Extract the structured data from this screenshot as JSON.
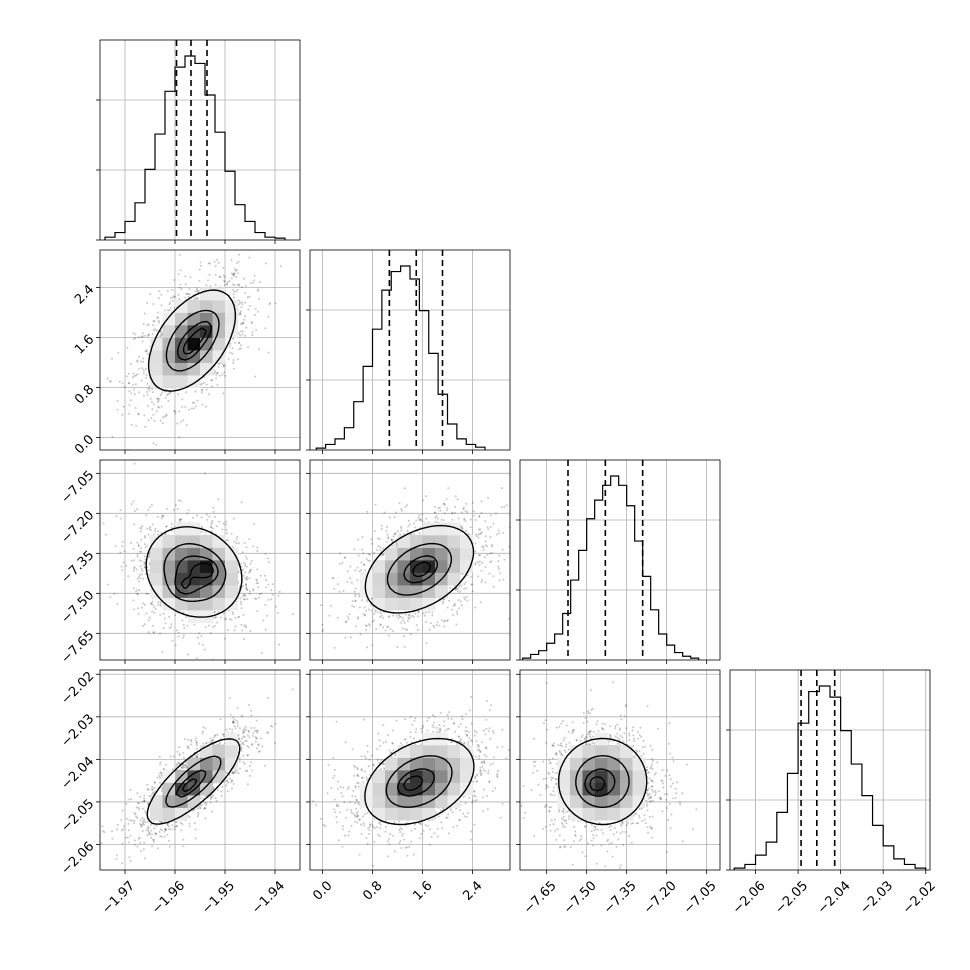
{
  "chart_data": {
    "type": "corner",
    "parameters": [
      {
        "index": 0,
        "range": [
          -1.975,
          -1.935
        ],
        "ticks": [
          -1.97,
          -1.96,
          -1.95,
          -1.94
        ],
        "tick_labels": [
          "−1.97",
          "−1.96",
          "−1.95",
          "−1.94"
        ],
        "quantiles": [
          -1.9597,
          -1.9568,
          -1.9536
        ],
        "hist_bins": [
          -1.974,
          -1.972,
          -1.97,
          -1.968,
          -1.966,
          -1.964,
          -1.962,
          -1.96,
          -1.958,
          -1.956,
          -1.954,
          -1.952,
          -1.95,
          -1.948,
          -1.946,
          -1.944,
          -1.942,
          -1.94,
          -1.938
        ],
        "hist_heights": [
          0.015,
          0.04,
          0.1,
          0.2,
          0.38,
          0.57,
          0.8,
          0.93,
          0.99,
          0.95,
          0.78,
          0.58,
          0.37,
          0.19,
          0.1,
          0.04,
          0.015,
          0.01
        ]
      },
      {
        "index": 1,
        "range": [
          -0.2,
          3.0
        ],
        "ticks": [
          0.0,
          0.8,
          1.6,
          2.4
        ],
        "tick_labels": [
          "0.0",
          "0.8",
          "1.6",
          "2.4"
        ],
        "quantiles": [
          1.07,
          1.5,
          1.92
        ],
        "hist_bins": [
          -0.1,
          0.05,
          0.2,
          0.35,
          0.5,
          0.65,
          0.8,
          0.95,
          1.1,
          1.25,
          1.4,
          1.55,
          1.7,
          1.85,
          2.0,
          2.15,
          2.3,
          2.45,
          2.6
        ],
        "hist_heights": [
          0.01,
          0.03,
          0.06,
          0.12,
          0.26,
          0.45,
          0.65,
          0.86,
          0.96,
          0.99,
          0.92,
          0.75,
          0.52,
          0.3,
          0.14,
          0.06,
          0.03,
          0.015
        ]
      },
      {
        "index": 2,
        "range": [
          -7.75,
          -7.0
        ],
        "ticks": [
          -7.65,
          -7.5,
          -7.35,
          -7.2,
          -7.05
        ],
        "tick_labels": [
          "−7.65",
          "−7.50",
          "−7.35",
          "−7.20",
          "−7.05"
        ],
        "quantiles": [
          -7.57,
          -7.43,
          -7.29
        ],
        "hist_bins": [
          -7.74,
          -7.71,
          -7.68,
          -7.65,
          -7.62,
          -7.59,
          -7.56,
          -7.53,
          -7.5,
          -7.47,
          -7.44,
          -7.41,
          -7.38,
          -7.35,
          -7.32,
          -7.29,
          -7.26,
          -7.23,
          -7.2,
          -7.17,
          -7.14,
          -7.11,
          -7.08
        ],
        "hist_heights": [
          0.01,
          0.03,
          0.05,
          0.09,
          0.14,
          0.25,
          0.43,
          0.59,
          0.76,
          0.86,
          0.94,
          0.99,
          0.94,
          0.83,
          0.64,
          0.45,
          0.27,
          0.14,
          0.08,
          0.04,
          0.02,
          0.01
        ]
      },
      {
        "index": 3,
        "range": [
          -2.066,
          -2.019
        ],
        "ticks": [
          -2.06,
          -2.05,
          -2.04,
          -2.03,
          -2.02
        ],
        "tick_labels": [
          "−2.06",
          "−2.05",
          "−2.04",
          "−2.03",
          "−2.02"
        ],
        "quantiles": [
          -2.0493,
          -2.0456,
          -2.0414
        ],
        "hist_bins": [
          -2.065,
          -2.0625,
          -2.06,
          -2.0575,
          -2.055,
          -2.0525,
          -2.05,
          -2.0475,
          -2.045,
          -2.0425,
          -2.04,
          -2.0375,
          -2.035,
          -2.0325,
          -2.03,
          -2.0275,
          -2.025,
          -2.0225,
          -2.02
        ],
        "hist_heights": [
          0.01,
          0.03,
          0.08,
          0.15,
          0.31,
          0.52,
          0.79,
          0.96,
          0.99,
          0.93,
          0.75,
          0.57,
          0.4,
          0.24,
          0.13,
          0.06,
          0.03,
          0.01
        ]
      }
    ],
    "pair_panels": [
      {
        "x": 0,
        "y": 1,
        "mean": [
          -1.9566,
          1.55
        ],
        "sd": [
          0.0045,
          0.42
        ],
        "corr": 0.5,
        "modes": [
          [
            -1.9572,
            1.42
          ],
          [
            -1.9542,
            1.7
          ]
        ]
      },
      {
        "x": 0,
        "y": 2,
        "mean": [
          -1.9562,
          -7.42
        ],
        "sd": [
          0.0048,
          0.085
        ],
        "corr": -0.15,
        "modes": [
          [
            -1.9585,
            -7.48
          ],
          [
            -1.953,
            -7.41
          ]
        ]
      },
      {
        "x": 1,
        "y": 2,
        "mean": [
          1.55,
          -7.41
        ],
        "sd": [
          0.45,
          0.085
        ],
        "corr": 0.4,
        "modes": [
          [
            1.6,
            -7.41
          ]
        ]
      },
      {
        "x": 0,
        "y": 3,
        "mean": [
          -1.9563,
          -2.0452
        ],
        "sd": [
          0.0048,
          0.0052
        ],
        "corr": 0.78,
        "modes": [
          [
            -1.9575,
            -2.0465
          ]
        ]
      },
      {
        "x": 1,
        "y": 3,
        "mean": [
          1.55,
          -2.0452
        ],
        "sd": [
          0.45,
          0.0052
        ],
        "corr": 0.35,
        "modes": [
          [
            1.4,
            -2.0458
          ]
        ]
      },
      {
        "x": 2,
        "y": 3,
        "mean": [
          -7.44,
          -2.0452
        ],
        "sd": [
          0.085,
          0.0052
        ],
        "corr": 0.0,
        "modes": [
          [
            -7.47,
            -2.046
          ]
        ]
      }
    ],
    "contour_levels": [
      0.118,
      0.393,
      0.675,
      0.865
    ],
    "grid": true,
    "quantile_style": "dashed"
  }
}
